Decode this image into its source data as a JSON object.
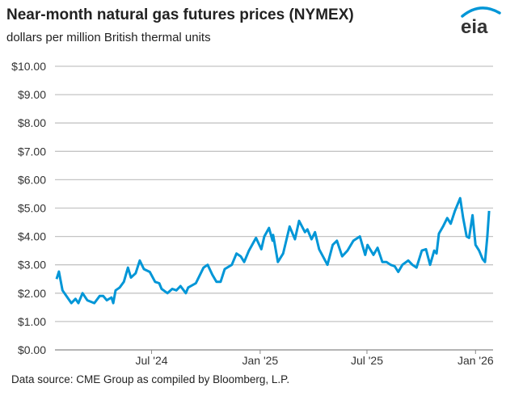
{
  "chart_data": {
    "type": "line",
    "title": "Near-month natural gas futures prices (NYMEX)",
    "subtitle": "dollars per million British thermal units",
    "source": "Data source: CME Group as compiled by Bloomberg, L.P.",
    "logo_text": "eia",
    "ylim": [
      0,
      10
    ],
    "yticks": [
      "$0.00",
      "$1.00",
      "$2.00",
      "$3.00",
      "$4.00",
      "$5.00",
      "$6.00",
      "$7.00",
      "$8.00",
      "$9.00",
      "$10.00"
    ],
    "xticks": [
      {
        "date": "2024-07-01",
        "label": "Jul '24"
      },
      {
        "date": "2025-01-01",
        "label": "Jan '25"
      },
      {
        "date": "2025-07-01",
        "label": "Jul '25"
      },
      {
        "date": "2026-01-01",
        "label": "Jan '26"
      }
    ],
    "grid": true,
    "line_color": "#0096d7",
    "series": [
      {
        "points": [
          [
            "2024-01-22",
            2.5
          ],
          [
            "2024-01-26",
            2.76
          ],
          [
            "2024-02-01",
            2.1
          ],
          [
            "2024-02-16",
            1.65
          ],
          [
            "2024-02-23",
            1.8
          ],
          [
            "2024-02-28",
            1.65
          ],
          [
            "2024-03-06",
            2.0
          ],
          [
            "2024-03-14",
            1.75
          ],
          [
            "2024-03-26",
            1.65
          ],
          [
            "2024-04-04",
            1.9
          ],
          [
            "2024-04-10",
            1.9
          ],
          [
            "2024-04-16",
            1.75
          ],
          [
            "2024-04-24",
            1.85
          ],
          [
            "2024-04-27",
            1.65
          ],
          [
            "2024-05-01",
            2.1
          ],
          [
            "2024-05-08",
            2.2
          ],
          [
            "2024-05-15",
            2.4
          ],
          [
            "2024-05-22",
            2.9
          ],
          [
            "2024-05-27",
            2.55
          ],
          [
            "2024-06-04",
            2.7
          ],
          [
            "2024-06-11",
            3.15
          ],
          [
            "2024-06-18",
            2.85
          ],
          [
            "2024-06-28",
            2.75
          ],
          [
            "2024-07-07",
            2.4
          ],
          [
            "2024-07-14",
            2.35
          ],
          [
            "2024-07-18",
            2.15
          ],
          [
            "2024-07-28",
            2.0
          ],
          [
            "2024-08-05",
            2.15
          ],
          [
            "2024-08-12",
            2.1
          ],
          [
            "2024-08-19",
            2.25
          ],
          [
            "2024-08-28",
            2.0
          ],
          [
            "2024-09-01",
            2.2
          ],
          [
            "2024-09-14",
            2.35
          ],
          [
            "2024-09-27",
            2.9
          ],
          [
            "2024-10-04",
            3.0
          ],
          [
            "2024-10-12",
            2.65
          ],
          [
            "2024-10-19",
            2.4
          ],
          [
            "2024-10-26",
            2.4
          ],
          [
            "2024-11-02",
            2.85
          ],
          [
            "2024-11-14",
            3.0
          ],
          [
            "2024-11-22",
            3.4
          ],
          [
            "2024-11-29",
            3.3
          ],
          [
            "2024-12-05",
            3.1
          ],
          [
            "2024-12-13",
            3.5
          ],
          [
            "2024-12-25",
            3.95
          ],
          [
            "2025-01-03",
            3.55
          ],
          [
            "2025-01-08",
            4.0
          ],
          [
            "2025-01-16",
            4.3
          ],
          [
            "2025-01-22",
            3.85
          ],
          [
            "2025-01-23",
            4.05
          ],
          [
            "2025-01-31",
            3.1
          ],
          [
            "2025-02-09",
            3.4
          ],
          [
            "2025-02-20",
            4.35
          ],
          [
            "2025-03-01",
            3.9
          ],
          [
            "2025-03-08",
            4.55
          ],
          [
            "2025-03-18",
            4.15
          ],
          [
            "2025-03-22",
            4.25
          ],
          [
            "2025-03-29",
            3.9
          ],
          [
            "2025-04-04",
            4.15
          ],
          [
            "2025-04-11",
            3.55
          ],
          [
            "2025-04-25",
            3.0
          ],
          [
            "2025-05-04",
            3.7
          ],
          [
            "2025-05-11",
            3.85
          ],
          [
            "2025-05-20",
            3.3
          ],
          [
            "2025-05-29",
            3.5
          ],
          [
            "2025-06-08",
            3.85
          ],
          [
            "2025-06-19",
            4.0
          ],
          [
            "2025-06-28",
            3.35
          ],
          [
            "2025-07-02",
            3.7
          ],
          [
            "2025-07-12",
            3.35
          ],
          [
            "2025-07-19",
            3.6
          ],
          [
            "2025-07-27",
            3.1
          ],
          [
            "2025-08-03",
            3.1
          ],
          [
            "2025-08-10",
            3.0
          ],
          [
            "2025-08-17",
            2.95
          ],
          [
            "2025-08-23",
            2.75
          ],
          [
            "2025-08-30",
            3.0
          ],
          [
            "2025-09-09",
            3.15
          ],
          [
            "2025-09-16",
            3.0
          ],
          [
            "2025-09-23",
            2.9
          ],
          [
            "2025-10-02",
            3.5
          ],
          [
            "2025-10-09",
            3.55
          ],
          [
            "2025-10-16",
            3.0
          ],
          [
            "2025-10-23",
            3.5
          ],
          [
            "2025-10-27",
            3.4
          ],
          [
            "2025-10-31",
            4.1
          ],
          [
            "2025-11-07",
            4.35
          ],
          [
            "2025-11-14",
            4.65
          ],
          [
            "2025-11-20",
            4.45
          ],
          [
            "2025-11-27",
            4.9
          ],
          [
            "2025-12-06",
            5.35
          ],
          [
            "2025-12-11",
            4.65
          ],
          [
            "2025-12-17",
            4.0
          ],
          [
            "2025-12-21",
            3.95
          ],
          [
            "2025-12-27",
            4.75
          ],
          [
            "2026-01-01",
            3.7
          ],
          [
            "2026-01-07",
            3.5
          ],
          [
            "2026-01-13",
            3.2
          ],
          [
            "2026-01-17",
            3.1
          ],
          [
            "2026-01-21",
            4.0
          ],
          [
            "2026-01-24",
            4.9
          ]
        ]
      }
    ]
  }
}
